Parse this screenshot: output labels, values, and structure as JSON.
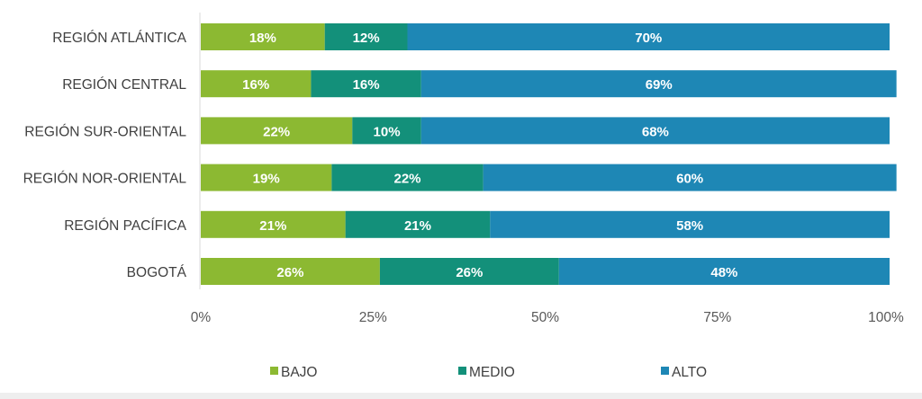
{
  "chart_data": {
    "type": "bar",
    "orientation": "horizontal",
    "stacked": true,
    "normalized": true,
    "categories": [
      "REGIÓN ATLÁNTICA",
      "REGIÓN CENTRAL",
      "REGIÓN SUR-ORIENTAL",
      "REGIÓN NOR-ORIENTAL",
      "REGIÓN PACÍFICA",
      "BOGOTÁ"
    ],
    "series": [
      {
        "name": "BAJO",
        "color": "#8cb932",
        "values": [
          18,
          16,
          22,
          19,
          21,
          26
        ]
      },
      {
        "name": "MEDIO",
        "color": "#13907a",
        "values": [
          12,
          16,
          10,
          22,
          21,
          26
        ]
      },
      {
        "name": "ALTO",
        "color": "#1e87b5",
        "values": [
          70,
          69,
          68,
          60,
          58,
          48
        ]
      }
    ],
    "data_labels": [
      [
        "18%",
        "16%",
        "22%",
        "19%",
        "21%",
        "26%"
      ],
      [
        "12%",
        "16%",
        "10%",
        "22%",
        "21%",
        "26%"
      ],
      [
        "70%",
        "69%",
        "68%",
        "60%",
        "58%",
        "48%"
      ]
    ],
    "xticks": [
      "0%",
      "25%",
      "50%",
      "75%",
      "100%"
    ],
    "xlim": [
      0,
      100
    ],
    "title": "",
    "xlabel": "",
    "ylabel": "",
    "grid": false,
    "legend_position": "bottom"
  }
}
